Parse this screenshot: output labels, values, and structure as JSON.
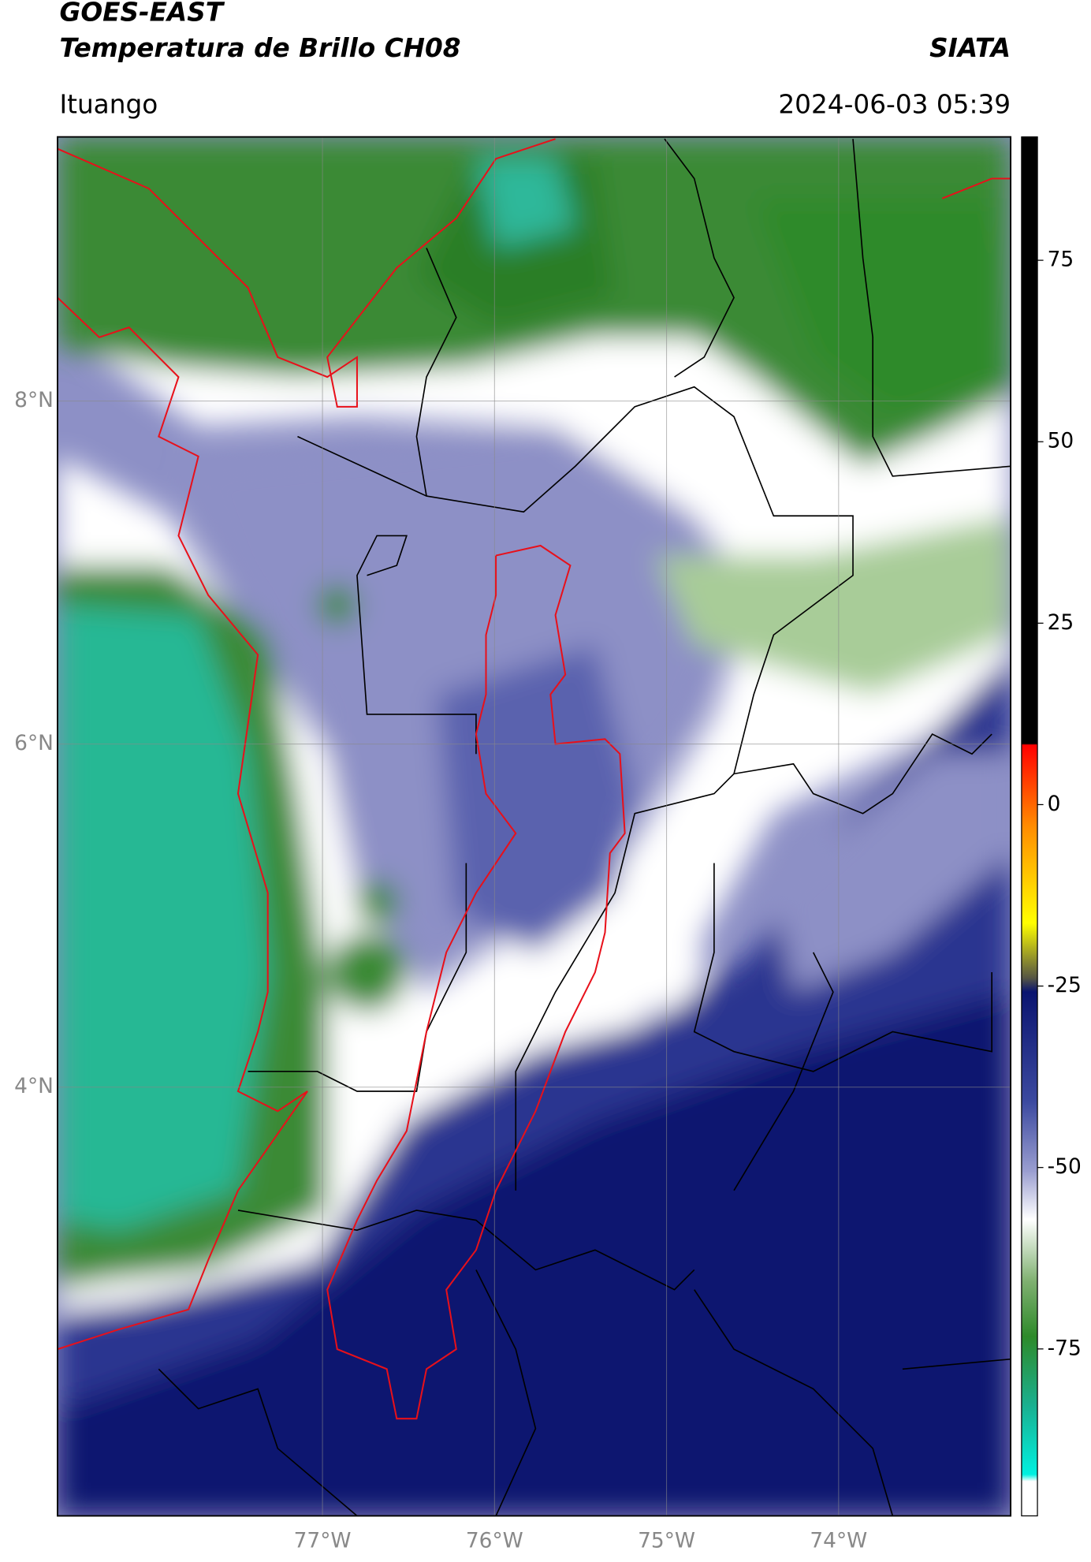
{
  "map": {
    "title": "GOES-EAST",
    "subtitle": "Temperatura de Brillo CH08",
    "agency": "SIATA",
    "location": "Ituango",
    "datetime": "2024-06-03 05:39",
    "lonlim": [
      -78.54,
      -73.0
    ],
    "latlim": [
      1.5,
      9.54
    ],
    "lonticks": [
      {
        "value": -77,
        "label": "77°W"
      },
      {
        "value": -76,
        "label": "76°W"
      },
      {
        "value": -75,
        "label": "75°W"
      },
      {
        "value": -74,
        "label": "74°W"
      }
    ],
    "latticks": [
      {
        "value": 8,
        "label": "8°N"
      },
      {
        "value": 6,
        "label": "6°N"
      },
      {
        "value": 4,
        "label": "4°N"
      }
    ],
    "colorbar": {
      "lim": [
        -98,
        92
      ],
      "ticks": [
        75,
        50,
        25,
        0,
        -25,
        -50,
        -75
      ]
    },
    "grid": true
  }
}
